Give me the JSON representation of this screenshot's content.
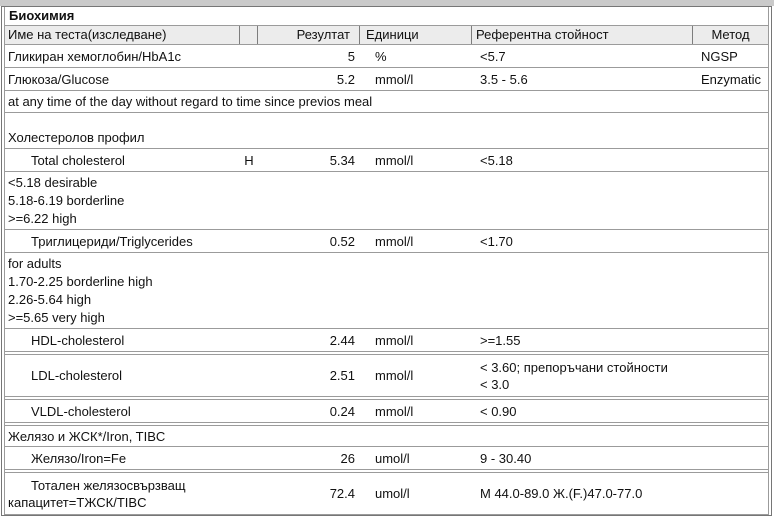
{
  "report": {
    "title": "Биохимия",
    "columns": {
      "name": "Име на теста(изследване)",
      "result": "Резултат",
      "units": "Единици",
      "reference": "Референтна стойност",
      "method": "Метод"
    },
    "colors": {
      "top_band": "#cacaca",
      "header_bg": "#ececec",
      "row_border": "#9b9b9b",
      "outer_border": "#767676",
      "text": "#111111"
    },
    "rows": [
      {
        "type": "test",
        "indent": false,
        "name": "Гликиран хемоглобин/HbA1c",
        "flag": "",
        "result": "5",
        "units": "%",
        "reference": [
          "<5.7"
        ],
        "method": "NGSP"
      },
      {
        "type": "test",
        "indent": false,
        "name": "Глюкоза/Glucose",
        "flag": "",
        "result": "5.2",
        "units": "mmol/l",
        "reference": [
          "3.5 - 5.6"
        ],
        "method": "Enzymatic"
      },
      {
        "type": "note",
        "lines": [
          "at any time of the day without regard to time since previos meal"
        ]
      },
      {
        "type": "section",
        "tall": true,
        "label": "Холестеролов профил"
      },
      {
        "type": "test",
        "indent": true,
        "name": "Total cholesterol",
        "flag": "H",
        "result": "5.34",
        "units": "mmol/l",
        "reference": [
          "<5.18"
        ],
        "method": ""
      },
      {
        "type": "note",
        "lines": [
          "<5.18 desirable",
          "5.18-6.19 borderline",
          ">=6.22 high"
        ]
      },
      {
        "type": "test",
        "indent": true,
        "name": "Триглицериди/Triglycerides",
        "flag": "",
        "result": "0.52",
        "units": "mmol/l",
        "reference": [
          "<1.70"
        ],
        "method": ""
      },
      {
        "type": "note",
        "lines": [
          "for adults",
          "1.70-2.25 borderline high",
          "2.26-5.64 high",
          ">=5.65 very high"
        ]
      },
      {
        "type": "test",
        "indent": true,
        "name": "HDL-cholesterol",
        "flag": "",
        "result": "2.44",
        "units": "mmol/l",
        "reference": [
          ">=1.55"
        ],
        "method": ""
      },
      {
        "type": "gap"
      },
      {
        "type": "test",
        "indent": true,
        "two": true,
        "name": "LDL-cholesterol",
        "flag": "",
        "result": "2.51",
        "units": "mmol/l",
        "reference": [
          "< 3.60; препоръчани стойности",
          "< 3.0"
        ],
        "method": ""
      },
      {
        "type": "gap"
      },
      {
        "type": "test",
        "indent": true,
        "name": "VLDL-cholesterol",
        "flag": "",
        "result": "0.24",
        "units": "mmol/l",
        "reference": [
          "< 0.90"
        ],
        "method": ""
      },
      {
        "type": "gap"
      },
      {
        "type": "section",
        "tall": false,
        "label": "Желязо и ЖСК*/Iron, TIBC"
      },
      {
        "type": "test",
        "indent": true,
        "name": "Желязо/Iron=Fe",
        "flag": "",
        "result": "26",
        "units": "umol/l",
        "reference": [
          "9 - 30.40"
        ],
        "method": ""
      },
      {
        "type": "gap"
      },
      {
        "type": "test",
        "indent": true,
        "two": true,
        "name": "Тотален желязосвързващ капацитет=ТЖСК/TIBC",
        "flag": "",
        "result": "72.4",
        "units": "umol/l",
        "reference": [
          "М 44.0-89.0 Ж.(F.)47.0-77.0"
        ],
        "method": ""
      }
    ]
  }
}
